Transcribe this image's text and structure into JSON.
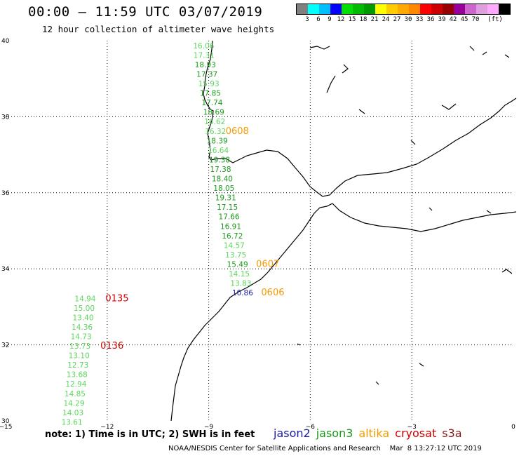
{
  "header": {
    "title": "00:00 – 11:59 UTC 03/07/2019",
    "subtitle": "12 hour collection of altimeter wave heights"
  },
  "color_scale": {
    "colors": [
      "#808080",
      "#00ffff",
      "#00bfff",
      "#0000ff",
      "#00dd00",
      "#00bb00",
      "#009900",
      "#ffff00",
      "#ffcc00",
      "#ffaa00",
      "#ff8800",
      "#ff0000",
      "#cc0000",
      "#990000",
      "#990099",
      "#cc66cc",
      "#dda0dd",
      "#ffaaff",
      "#000000"
    ],
    "labels": [
      "3",
      "6",
      "9",
      "12",
      "15",
      "18",
      "21",
      "24",
      "27",
      "30",
      "33",
      "36",
      "39",
      "42",
      "45",
      "70",
      "(ft)"
    ]
  },
  "axes": {
    "x_ticks": [
      "−15",
      "−12",
      "−9",
      "−6",
      "−3",
      "0"
    ],
    "y_ticks": [
      "40",
      "38",
      "36",
      "34",
      "32",
      "30"
    ]
  },
  "track_colors": {
    "jason2": "#1a1aa8",
    "jason3": "#1b9a1b",
    "jason3_light": "#5cd65c",
    "altika": "#f59a00",
    "cryosat": "#d00000"
  },
  "tracks": [
    {
      "id": "jason3",
      "values": [
        {
          "lon": -9.15,
          "lat": 39.8,
          "v": "16.06",
          "c": "#5cd65c"
        },
        {
          "lon": -9.14,
          "lat": 39.55,
          "v": "17.31",
          "c": "#5cd65c"
        },
        {
          "lon": -9.1,
          "lat": 39.3,
          "v": "18.93",
          "c": "#1b9a1b"
        },
        {
          "lon": -9.05,
          "lat": 39.05,
          "v": "17.37",
          "c": "#1b9a1b"
        },
        {
          "lon": -9.0,
          "lat": 38.8,
          "v": "15.93",
          "c": "#5cd65c"
        },
        {
          "lon": -8.95,
          "lat": 38.55,
          "v": "17.85",
          "c": "#1b9a1b"
        },
        {
          "lon": -8.9,
          "lat": 38.3,
          "v": "17.74",
          "c": "#1b9a1b"
        },
        {
          "lon": -8.85,
          "lat": 38.05,
          "v": "18.69",
          "c": "#1b9a1b"
        },
        {
          "lon": -8.82,
          "lat": 37.8,
          "v": "16.62",
          "c": "#5cd65c"
        },
        {
          "lon": -8.8,
          "lat": 37.55,
          "v": "16.32",
          "c": "#5cd65c"
        },
        {
          "lon": -8.75,
          "lat": 37.3,
          "v": "18.39",
          "c": "#1b9a1b"
        },
        {
          "lon": -8.72,
          "lat": 37.05,
          "v": "16.64",
          "c": "#5cd65c"
        },
        {
          "lon": -8.68,
          "lat": 36.8,
          "v": "19.38",
          "c": "#1b9a1b"
        },
        {
          "lon": -8.65,
          "lat": 36.55,
          "v": "17.38",
          "c": "#1b9a1b"
        },
        {
          "lon": -8.6,
          "lat": 36.3,
          "v": "18.40",
          "c": "#1b9a1b"
        },
        {
          "lon": -8.55,
          "lat": 36.05,
          "v": "18.05",
          "c": "#1b9a1b"
        },
        {
          "lon": -8.5,
          "lat": 35.8,
          "v": "19.31",
          "c": "#1b9a1b"
        },
        {
          "lon": -8.45,
          "lat": 35.55,
          "v": "17.15",
          "c": "#1b9a1b"
        },
        {
          "lon": -8.4,
          "lat": 35.3,
          "v": "17.66",
          "c": "#1b9a1b"
        },
        {
          "lon": -8.35,
          "lat": 35.05,
          "v": "16.91",
          "c": "#1b9a1b"
        },
        {
          "lon": -8.3,
          "lat": 34.8,
          "v": "16.72",
          "c": "#1b9a1b"
        },
        {
          "lon": -8.25,
          "lat": 34.55,
          "v": "14.57",
          "c": "#5cd65c"
        },
        {
          "lon": -8.2,
          "lat": 34.3,
          "v": "13.75",
          "c": "#5cd65c"
        },
        {
          "lon": -8.15,
          "lat": 34.05,
          "v": "15.49",
          "c": "#1b9a1b"
        },
        {
          "lon": -8.1,
          "lat": 33.8,
          "v": "14.15",
          "c": "#5cd65c"
        },
        {
          "lon": -8.05,
          "lat": 33.55,
          "v": "13.83",
          "c": "#5cd65c"
        },
        {
          "lon": -8.0,
          "lat": 33.3,
          "v": "10.86",
          "c": "#1a1aa8"
        }
      ]
    },
    {
      "id": "altika_near",
      "values": [
        {
          "lon": -12.65,
          "lat": 33.15,
          "v": "14.94",
          "c": "#5cd65c"
        },
        {
          "lon": -12.68,
          "lat": 32.9,
          "v": "15.00",
          "c": "#5cd65c"
        },
        {
          "lon": -12.71,
          "lat": 32.65,
          "v": "13.40",
          "c": "#5cd65c"
        },
        {
          "lon": -12.74,
          "lat": 32.4,
          "v": "14.36",
          "c": "#5cd65c"
        },
        {
          "lon": -12.77,
          "lat": 32.15,
          "v": "14.73",
          "c": "#5cd65c"
        },
        {
          "lon": -12.8,
          "lat": 31.9,
          "v": "13.73",
          "c": "#5cd65c"
        },
        {
          "lon": -12.83,
          "lat": 31.65,
          "v": "13.10",
          "c": "#5cd65c"
        },
        {
          "lon": -12.86,
          "lat": 31.4,
          "v": "12.73",
          "c": "#5cd65c"
        },
        {
          "lon": -12.89,
          "lat": 31.15,
          "v": "13.68",
          "c": "#5cd65c"
        },
        {
          "lon": -12.92,
          "lat": 30.9,
          "v": "12.94",
          "c": "#5cd65c"
        },
        {
          "lon": -12.95,
          "lat": 30.65,
          "v": "14.85",
          "c": "#5cd65c"
        },
        {
          "lon": -12.98,
          "lat": 30.4,
          "v": "14.29",
          "c": "#5cd65c"
        },
        {
          "lon": -13.01,
          "lat": 30.15,
          "v": "14.03",
          "c": "#5cd65c"
        },
        {
          "lon": -13.04,
          "lat": 29.9,
          "v": "13.61",
          "c": "#5cd65c"
        }
      ]
    }
  ],
  "time_labels": [
    {
      "lon": -8.5,
      "lat": 37.55,
      "t": "0608",
      "c": "#f59a00"
    },
    {
      "lon": -7.6,
      "lat": 34.05,
      "t": "0607",
      "c": "#f59a00"
    },
    {
      "lon": -7.45,
      "lat": 33.3,
      "t": "0606",
      "c": "#f59a00"
    },
    {
      "lon": -12.05,
      "lat": 33.15,
      "t": "0135",
      "c": "#d00000"
    },
    {
      "lon": -12.2,
      "lat": 31.9,
      "t": "0136",
      "c": "#d00000"
    }
  ],
  "footer": {
    "note": "note:  1) Time is in UTC;  2) SWH is in feet",
    "satellites": [
      {
        "name": "jason2",
        "color": "#1a1aa8"
      },
      {
        "name": "jason3",
        "color": "#1b9a1b"
      },
      {
        "name": "altika",
        "color": "#f59a00"
      },
      {
        "name": "cryosat",
        "color": "#d00000"
      },
      {
        "name": "s3a",
        "color": "#8b1a1a"
      }
    ],
    "credit": "NOAA/NESDIS Center for Satellite Applications and Research    Mar  8 13:27:12 UTC 2019"
  }
}
